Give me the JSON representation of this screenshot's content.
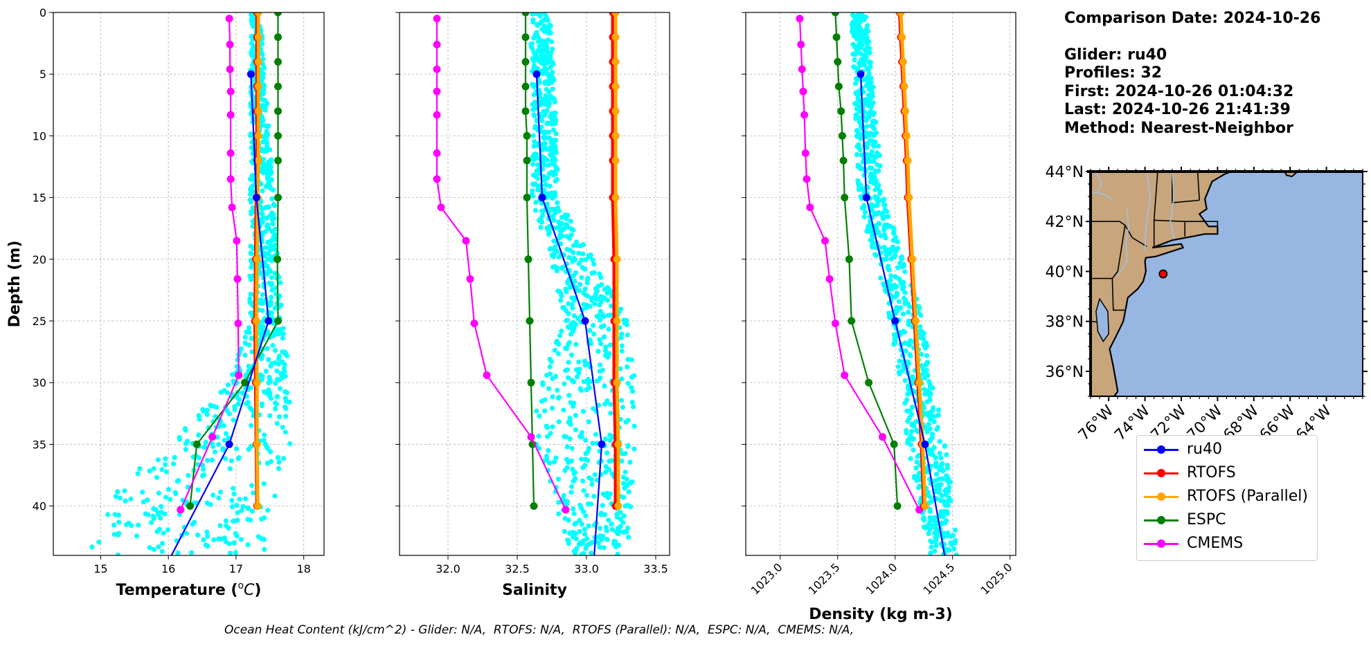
{
  "info": {
    "comparison_date": "Comparison Date: 2024-10-26",
    "glider": "Glider: ru40",
    "profiles": "Profiles: 32",
    "first": "First: 2024-10-26 01:04:32",
    "last": "Last: 2024-10-26 21:41:39",
    "method": "Method: Nearest-Neighbor"
  },
  "footer_text": "Ocean Heat Content (kJ/cm^2) - Glider: N/A,  RTOFS: N/A,  RTOFS (Parallel): N/A,  ESPC: N/A,  CMEMS: N/A,",
  "legend": [
    {
      "label": "ru40",
      "color": "#0000ff"
    },
    {
      "label": "RTOFS",
      "color": "#ff0000"
    },
    {
      "label": "RTOFS (Parallel)",
      "color": "#ffa500"
    },
    {
      "label": "ESPC",
      "color": "#008000"
    },
    {
      "label": "CMEMS",
      "color": "#ff00ff"
    }
  ],
  "colors": {
    "glider_scatter": "#00ffff",
    "land": "#c8a57b",
    "ocean": "#97b6e1",
    "river": "#a3bfdc",
    "grid": "#b0b0b0"
  },
  "map": {
    "lat_ticks": [
      "44°N",
      "42°N",
      "40°N",
      "38°N",
      "36°N"
    ],
    "lon_ticks": [
      "76°W",
      "74°W",
      "72°W",
      "70°W",
      "68°W",
      "66°W",
      "64°W"
    ],
    "glider_location": {
      "lon": -73.0,
      "lat": 39.9
    },
    "extent": {
      "lon": [
        -77,
        -62
      ],
      "lat": [
        35,
        44
      ]
    }
  },
  "chart_data": [
    {
      "type": "line",
      "panel": "temperature",
      "xlabel": "Temperature (°C)",
      "ylabel": "Depth (m)",
      "xlim": [
        14.3,
        18.3
      ],
      "ylim": [
        44,
        0
      ],
      "y_inverted": true,
      "xticks": [
        15,
        16,
        17,
        18
      ],
      "yticks": [
        0,
        5,
        10,
        15,
        20,
        25,
        30,
        35,
        40
      ],
      "grid": true,
      "series": [
        {
          "name": "ru40",
          "depth": [
            5,
            15,
            25,
            35,
            45
          ],
          "values": [
            17.22,
            17.3,
            17.48,
            16.9,
            15.95
          ]
        },
        {
          "name": "RTOFS",
          "depth": [
            0,
            2,
            4,
            6,
            8,
            10,
            12,
            15,
            20,
            25,
            30,
            35,
            40
          ],
          "values": [
            17.31,
            17.31,
            17.31,
            17.31,
            17.31,
            17.31,
            17.31,
            17.3,
            17.29,
            17.28,
            17.29,
            17.3,
            17.31
          ]
        },
        {
          "name": "RTOFS (Parallel)",
          "depth": [
            0,
            2,
            4,
            6,
            8,
            10,
            12,
            15,
            20,
            25,
            30,
            35,
            40
          ],
          "values": [
            17.33,
            17.33,
            17.33,
            17.33,
            17.33,
            17.33,
            17.33,
            17.32,
            17.31,
            17.3,
            17.31,
            17.31,
            17.32
          ]
        },
        {
          "name": "ESPC",
          "depth": [
            0,
            2,
            4,
            6,
            8,
            10,
            12,
            15,
            20,
            25,
            30,
            35,
            40
          ],
          "values": [
            17.62,
            17.62,
            17.62,
            17.62,
            17.62,
            17.62,
            17.62,
            17.62,
            17.61,
            17.62,
            17.13,
            16.42,
            16.32
          ]
        },
        {
          "name": "CMEMS",
          "depth": [
            0.5,
            2.6,
            4.6,
            6.4,
            8.3,
            11.4,
            13.5,
            15.8,
            18.5,
            21.6,
            25.2,
            29.4,
            34.4,
            40.3
          ],
          "values": [
            16.9,
            16.91,
            16.91,
            16.92,
            16.92,
            16.92,
            16.92,
            16.94,
            17.01,
            17.02,
            17.03,
            17.04,
            16.65,
            16.18
          ]
        }
      ],
      "scatter_profile": {
        "name": "ru40 profiles",
        "depth_range": [
          0,
          44
        ],
        "x_band": [
          [
            0,
            17.22,
            17.36
          ],
          [
            25,
            17.2,
            17.7
          ],
          [
            30,
            16.9,
            17.8
          ],
          [
            35,
            16.0,
            17.8
          ],
          [
            38,
            15.3,
            17.6
          ],
          [
            44,
            14.8,
            17.5
          ]
        ]
      }
    },
    {
      "type": "line",
      "panel": "salinity",
      "xlabel": "Salinity",
      "xlim": [
        31.65,
        33.6
      ],
      "ylim": [
        44,
        0
      ],
      "y_inverted": true,
      "xticks": [
        32.0,
        32.5,
        33.0,
        33.5
      ],
      "yticks": [
        0,
        5,
        10,
        15,
        20,
        25,
        30,
        35,
        40
      ],
      "grid": true,
      "series": [
        {
          "name": "ru40",
          "depth": [
            5,
            15,
            25,
            35,
            45
          ],
          "values": [
            32.64,
            32.68,
            32.99,
            33.11,
            33.05
          ]
        },
        {
          "name": "RTOFS",
          "depth": [
            0,
            2,
            4,
            6,
            8,
            10,
            12,
            15,
            20,
            25,
            30,
            35,
            40
          ],
          "values": [
            33.19,
            33.19,
            33.19,
            33.19,
            33.19,
            33.19,
            33.19,
            33.19,
            33.2,
            33.2,
            33.2,
            33.21,
            33.21
          ]
        },
        {
          "name": "RTOFS (Parallel)",
          "depth": [
            0,
            2,
            4,
            6,
            8,
            10,
            12,
            15,
            20,
            25,
            30,
            35,
            40
          ],
          "values": [
            33.21,
            33.21,
            33.21,
            33.21,
            33.21,
            33.21,
            33.21,
            33.21,
            33.22,
            33.22,
            33.22,
            33.23,
            33.23
          ]
        },
        {
          "name": "ESPC",
          "depth": [
            0,
            2,
            4,
            6,
            8,
            10,
            12,
            15,
            20,
            25,
            30,
            35,
            40
          ],
          "values": [
            32.56,
            32.56,
            32.56,
            32.56,
            32.56,
            32.57,
            32.57,
            32.57,
            32.58,
            32.59,
            32.6,
            32.61,
            32.62
          ]
        },
        {
          "name": "CMEMS",
          "depth": [
            0.5,
            2.6,
            4.6,
            6.4,
            8.3,
            11.4,
            13.5,
            15.8,
            18.5,
            21.6,
            25.2,
            29.4,
            34.4,
            40.3
          ],
          "values": [
            31.92,
            31.92,
            31.92,
            31.92,
            31.92,
            31.92,
            31.92,
            31.95,
            32.13,
            32.16,
            32.19,
            32.28,
            32.6,
            32.85
          ]
        }
      ],
      "scatter_profile": {
        "name": "ru40 profiles",
        "depth_range": [
          0,
          44
        ],
        "x_band": [
          [
            0,
            32.6,
            32.75
          ],
          [
            15,
            32.6,
            32.8
          ],
          [
            25,
            32.85,
            33.3
          ],
          [
            30,
            32.65,
            33.35
          ],
          [
            35,
            32.62,
            33.35
          ],
          [
            44,
            32.9,
            33.3
          ]
        ]
      }
    },
    {
      "type": "line",
      "panel": "density",
      "xlabel": "Density (kg m-3)",
      "xlim": [
        1022.7,
        1025.05
      ],
      "ylim": [
        44,
        0
      ],
      "y_inverted": true,
      "xticks": [
        1023.0,
        1023.5,
        1024.0,
        1024.5,
        1025.0
      ],
      "yticks": [
        0,
        5,
        10,
        15,
        20,
        25,
        30,
        35,
        40
      ],
      "grid": true,
      "series": [
        {
          "name": "ru40",
          "depth": [
            5,
            15,
            25,
            35,
            45
          ],
          "values": [
            1023.7,
            1023.75,
            1024.0,
            1024.26,
            1024.45
          ]
        },
        {
          "name": "RTOFS",
          "depth": [
            0,
            2,
            4,
            6,
            8,
            10,
            12,
            15,
            20,
            25,
            30,
            35,
            40
          ],
          "values": [
            1024.04,
            1024.05,
            1024.06,
            1024.07,
            1024.08,
            1024.09,
            1024.1,
            1024.11,
            1024.14,
            1024.17,
            1024.2,
            1024.23,
            1024.25
          ]
        },
        {
          "name": "RTOFS (Parallel)",
          "depth": [
            0,
            2,
            4,
            6,
            8,
            10,
            12,
            15,
            20,
            25,
            30,
            35,
            40
          ],
          "values": [
            1024.05,
            1024.06,
            1024.07,
            1024.08,
            1024.09,
            1024.1,
            1024.11,
            1024.12,
            1024.15,
            1024.18,
            1024.21,
            1024.24,
            1024.26
          ]
        },
        {
          "name": "ESPC",
          "depth": [
            0,
            2,
            4,
            6,
            8,
            10,
            12,
            15,
            20,
            25,
            30,
            35,
            40
          ],
          "values": [
            1023.48,
            1023.49,
            1023.5,
            1023.51,
            1023.53,
            1023.54,
            1023.55,
            1023.56,
            1023.6,
            1023.62,
            1023.77,
            1023.99,
            1024.02
          ]
        },
        {
          "name": "CMEMS",
          "depth": [
            0.5,
            2.6,
            4.6,
            6.4,
            8.3,
            11.4,
            13.5,
            15.8,
            18.5,
            21.6,
            25.2,
            29.4,
            34.4,
            40.3
          ],
          "values": [
            1023.17,
            1023.18,
            1023.19,
            1023.2,
            1023.21,
            1023.22,
            1023.23,
            1023.26,
            1023.39,
            1023.43,
            1023.48,
            1023.56,
            1023.89,
            1024.21
          ]
        }
      ],
      "scatter_profile": {
        "name": "ru40 profiles",
        "depth_range": [
          0,
          44
        ],
        "x_band": [
          [
            0,
            1023.62,
            1023.75
          ],
          [
            15,
            1023.68,
            1023.9
          ],
          [
            25,
            1023.95,
            1024.25
          ],
          [
            30,
            1024.05,
            1024.32
          ],
          [
            35,
            1024.1,
            1024.45
          ],
          [
            44,
            1024.3,
            1024.55
          ]
        ]
      }
    }
  ]
}
